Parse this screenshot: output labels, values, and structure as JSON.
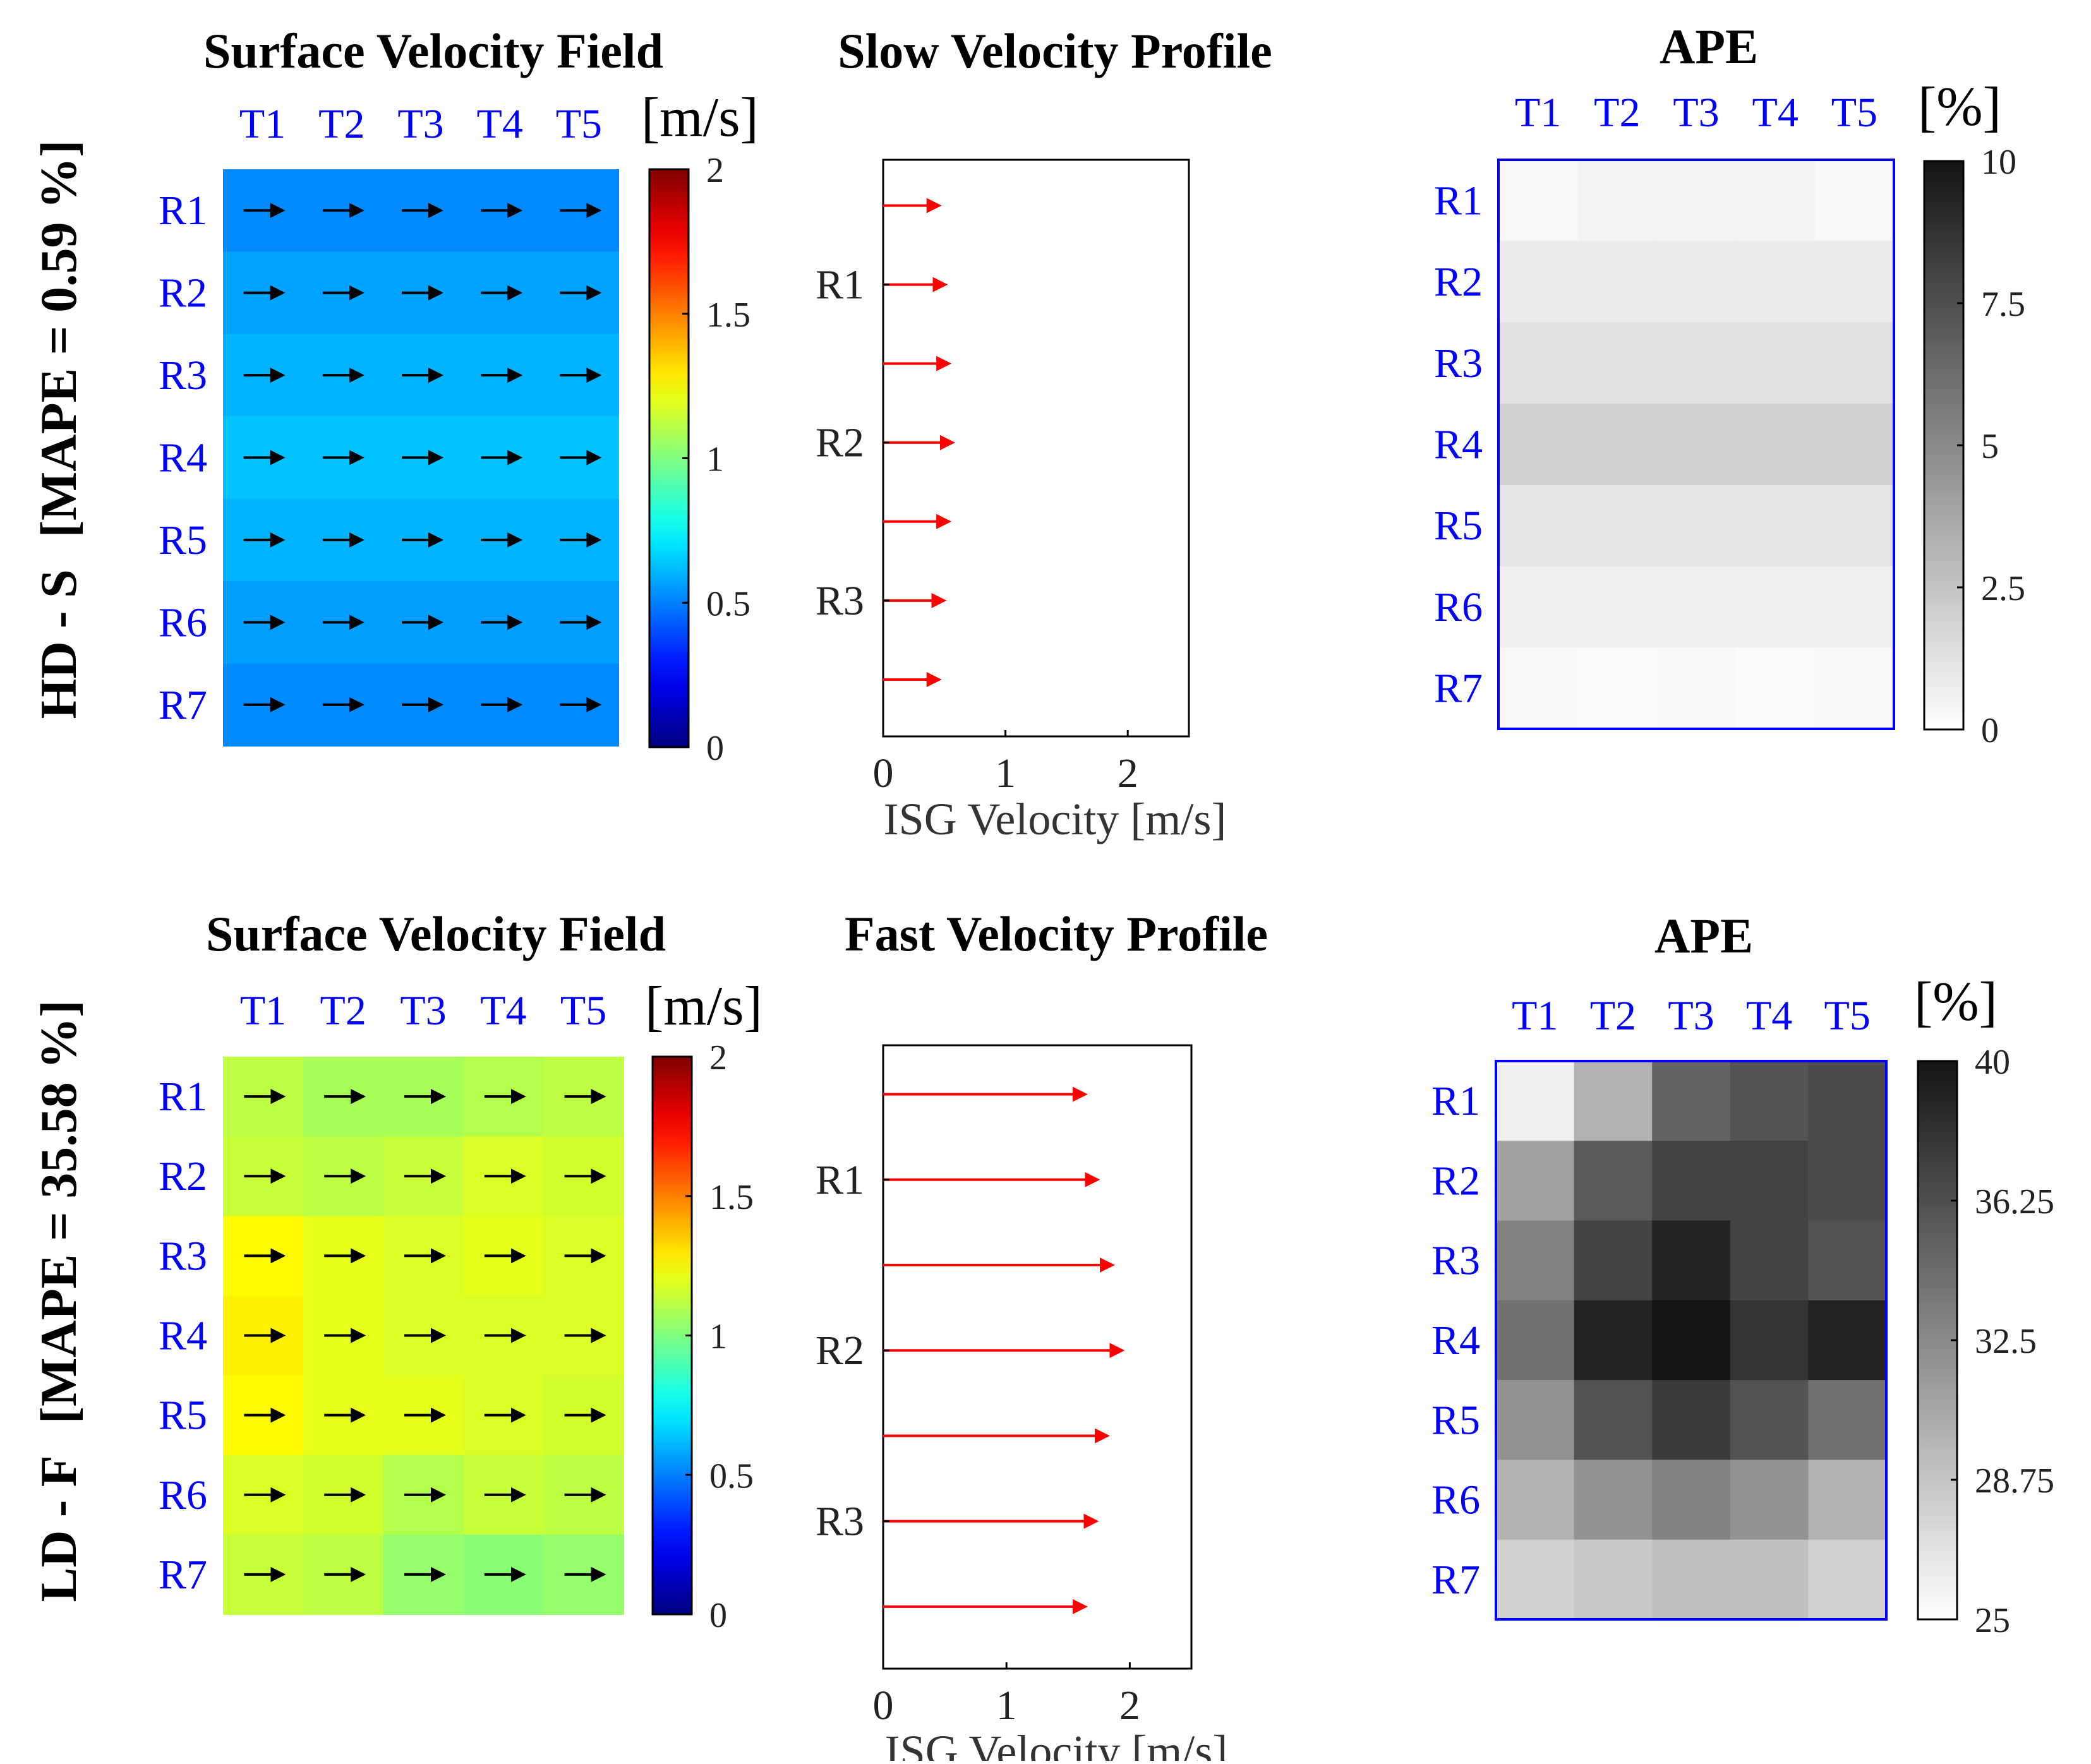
{
  "figure": {
    "rows": [
      {
        "label": "HD - S",
        "mape_label": "[MAPE = 0.59 %]",
        "velocity_field": {
          "title": "Surface Velocity Field",
          "unit": "[m/s]",
          "colorbar_ticks": [
            "0",
            "0.5",
            "1",
            "1.5",
            "2"
          ],
          "colorbar_range": [
            0,
            2
          ],
          "columns": [
            "T1",
            "T2",
            "T3",
            "T4",
            "T5"
          ],
          "rows": [
            "R1",
            "R2",
            "R3",
            "R4",
            "R5",
            "R6",
            "R7"
          ],
          "values": [
            [
              0.52,
              0.52,
              0.52,
              0.52,
              0.52
            ],
            [
              0.57,
              0.57,
              0.57,
              0.57,
              0.57
            ],
            [
              0.6,
              0.6,
              0.6,
              0.6,
              0.6
            ],
            [
              0.63,
              0.63,
              0.63,
              0.63,
              0.63
            ],
            [
              0.6,
              0.6,
              0.6,
              0.6,
              0.6
            ],
            [
              0.56,
              0.56,
              0.56,
              0.56,
              0.56
            ],
            [
              0.52,
              0.52,
              0.52,
              0.52,
              0.52
            ]
          ]
        },
        "profile": {
          "title": "Slow Velocity Profile",
          "xlabel": "ISG Velocity [m/s]",
          "xticks": [
            "0",
            "1",
            "2"
          ],
          "xlim": [
            0,
            2.5
          ],
          "ytick_labels": [
            "R1",
            "R2",
            "R3"
          ],
          "velocities": [
            0.52,
            0.57,
            0.6,
            0.63,
            0.6,
            0.56,
            0.52
          ]
        },
        "ape": {
          "title": "APE",
          "unit": "[%]",
          "colorbar_ticks": [
            "0",
            "2.5",
            "5",
            "7.5",
            "10"
          ],
          "colorbar_range": [
            0,
            10
          ],
          "columns": [
            "T1",
            "T2",
            "T3",
            "T4",
            "T5"
          ],
          "rows": [
            "R1",
            "R2",
            "R3",
            "R4",
            "R5",
            "R6",
            "R7"
          ],
          "values": [
            [
              0.3,
              0.5,
              0.5,
              0.5,
              0.3
            ],
            [
              0.8,
              0.8,
              0.8,
              0.8,
              0.8
            ],
            [
              1.3,
              1.3,
              1.3,
              1.3,
              1.3
            ],
            [
              1.9,
              1.9,
              1.9,
              1.9,
              1.9
            ],
            [
              1.2,
              1.2,
              1.2,
              1.2,
              1.2
            ],
            [
              0.7,
              0.7,
              0.7,
              0.7,
              0.7
            ],
            [
              0.3,
              0.2,
              0.3,
              0.2,
              0.3
            ]
          ]
        }
      },
      {
        "label": "LD - F",
        "mape_label": "[MAPE = 35.58 %]",
        "velocity_field": {
          "title": "Surface Velocity Field",
          "unit": "[m/s]",
          "colorbar_ticks": [
            "0",
            "0.5",
            "1",
            "1.5",
            "2"
          ],
          "colorbar_range": [
            0,
            2
          ],
          "columns": [
            "T1",
            "T2",
            "T3",
            "T4",
            "T5"
          ],
          "rows": [
            "R1",
            "R2",
            "R3",
            "R4",
            "R5",
            "R6",
            "R7"
          ],
          "values": [
            [
              1.12,
              1.08,
              1.08,
              1.1,
              1.12
            ],
            [
              1.14,
              1.12,
              1.14,
              1.18,
              1.16
            ],
            [
              1.26,
              1.2,
              1.18,
              1.2,
              1.18
            ],
            [
              1.28,
              1.2,
              1.18,
              1.18,
              1.18
            ],
            [
              1.26,
              1.2,
              1.2,
              1.18,
              1.16
            ],
            [
              1.18,
              1.16,
              1.1,
              1.14,
              1.12
            ],
            [
              1.14,
              1.12,
              1.04,
              1.02,
              1.04
            ]
          ]
        },
        "profile": {
          "title": "Fast Velocity Profile",
          "xlabel": "ISG Velocity [m/s]",
          "xticks": [
            "0",
            "1",
            "2"
          ],
          "xlim": [
            0,
            2.5
          ],
          "ytick_labels": [
            "R1",
            "R2",
            "R3"
          ],
          "velocities": [
            1.7,
            1.8,
            1.92,
            2.0,
            1.88,
            1.79,
            1.7
          ]
        },
        "ape": {
          "title": "APE",
          "unit": "[%]",
          "colorbar_ticks": [
            "25",
            "28.75",
            "32.5",
            "36.25",
            "40"
          ],
          "colorbar_range": [
            25,
            40
          ],
          "columns": [
            "T1",
            "T2",
            "T3",
            "T4",
            "T5"
          ],
          "rows": [
            "R1",
            "R2",
            "R3",
            "R4",
            "R5",
            "R6",
            "R7"
          ],
          "values": [
            [
              26.0,
              30.0,
              35.0,
              36.0,
              36.5
            ],
            [
              31.0,
              35.5,
              37.0,
              37.0,
              36.5
            ],
            [
              33.0,
              37.0,
              39.0,
              37.0,
              36.0
            ],
            [
              34.0,
              39.0,
              40.0,
              38.0,
              39.0
            ],
            [
              32.0,
              36.0,
              37.5,
              36.0,
              34.0
            ],
            [
              30.0,
              32.0,
              33.0,
              32.0,
              30.0
            ],
            [
              28.0,
              28.5,
              29.0,
              29.0,
              28.0
            ]
          ]
        }
      }
    ]
  },
  "chart_data": [
    {
      "type": "heatmap",
      "title": "Surface Velocity Field",
      "panel": "HD - S",
      "unit": "[m/s]",
      "x": [
        "T1",
        "T2",
        "T3",
        "T4",
        "T5"
      ],
      "y": [
        "R1",
        "R2",
        "R3",
        "R4",
        "R5",
        "R6",
        "R7"
      ],
      "zlim": [
        0,
        2
      ],
      "values": [
        [
          0.52,
          0.52,
          0.52,
          0.52,
          0.52
        ],
        [
          0.57,
          0.57,
          0.57,
          0.57,
          0.57
        ],
        [
          0.6,
          0.6,
          0.6,
          0.6,
          0.6
        ],
        [
          0.63,
          0.63,
          0.63,
          0.63,
          0.63
        ],
        [
          0.6,
          0.6,
          0.6,
          0.6,
          0.6
        ],
        [
          0.56,
          0.56,
          0.56,
          0.56,
          0.56
        ],
        [
          0.52,
          0.52,
          0.52,
          0.52,
          0.52
        ]
      ]
    },
    {
      "type": "bar",
      "title": "Slow Velocity Profile",
      "panel": "HD - S",
      "xlabel": "ISG Velocity [m/s]",
      "xlim": [
        0,
        2.5
      ],
      "velocities": [
        0.52,
        0.57,
        0.6,
        0.63,
        0.6,
        0.56,
        0.52
      ]
    },
    {
      "type": "heatmap",
      "title": "APE",
      "panel": "HD - S",
      "unit": "[%]",
      "zlim": [
        0,
        10
      ]
    },
    {
      "type": "heatmap",
      "title": "Surface Velocity Field",
      "panel": "LD - F",
      "unit": "[m/s]",
      "zlim": [
        0,
        2
      ]
    },
    {
      "type": "bar",
      "title": "Fast Velocity Profile",
      "panel": "LD - F",
      "xlabel": "ISG Velocity [m/s]",
      "xlim": [
        0,
        2.5
      ],
      "velocities": [
        1.7,
        1.8,
        1.92,
        2.0,
        1.88,
        1.79,
        1.7
      ]
    },
    {
      "type": "heatmap",
      "title": "APE",
      "panel": "LD - F",
      "unit": "[%]",
      "zlim": [
        25,
        40
      ]
    }
  ]
}
